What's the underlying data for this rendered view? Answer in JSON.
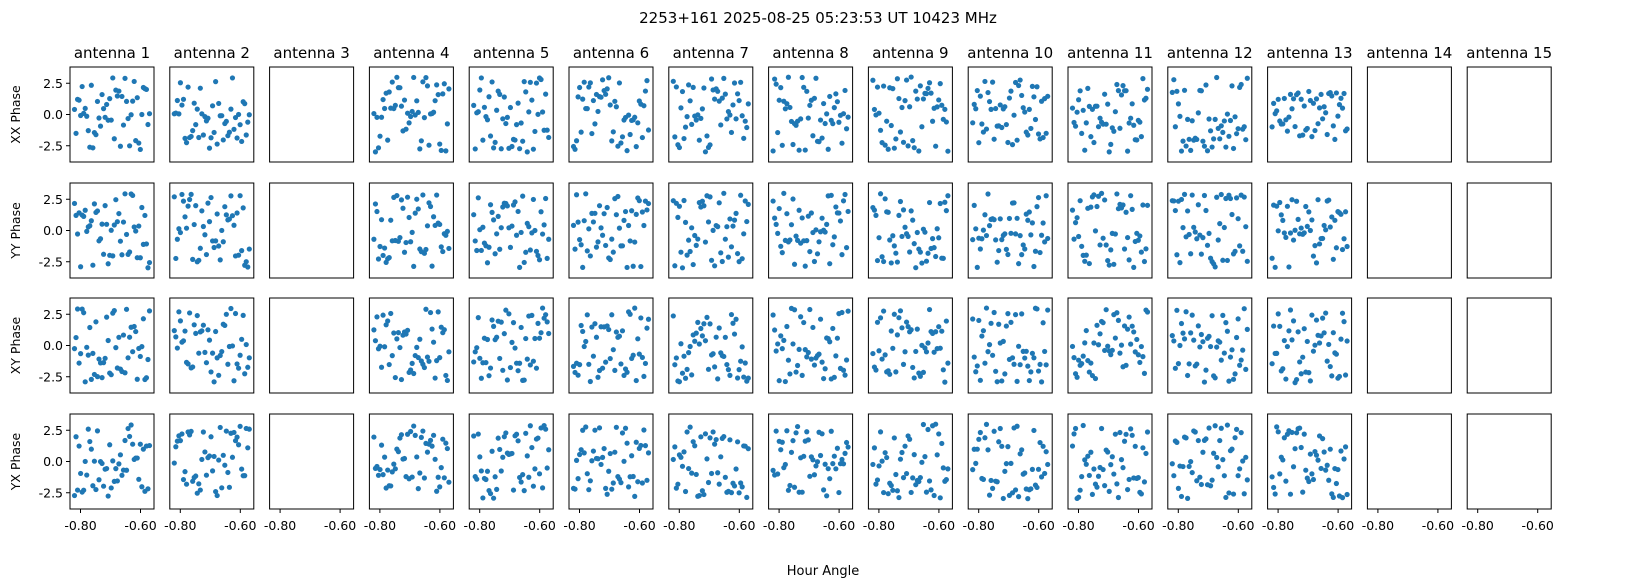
{
  "figure": {
    "suptitle": "2253+161  2025-08-25 05:23:53 UT  10423 MHz",
    "xlabel": "Hour Angle"
  },
  "style": {
    "point_color": "#1f77b4",
    "frame_color": "#000000",
    "background": "#ffffff"
  },
  "chart_data": {
    "type": "scatter",
    "layout": "grid",
    "antennas": [
      "antenna 1",
      "antenna 2",
      "antenna 3",
      "antenna 4",
      "antenna 5",
      "antenna 6",
      "antenna 7",
      "antenna 8",
      "antenna 9",
      "antenna 10",
      "antenna 11",
      "antenna 12",
      "antenna 13",
      "antenna 14",
      "antenna 15"
    ],
    "rows": [
      "XX Phase",
      "YY Phase",
      "XY Phase",
      "YX Phase"
    ],
    "xlim": [
      -0.835,
      -0.555
    ],
    "ylim": [
      -3.8,
      3.8
    ],
    "x_ticks": [
      -0.8,
      -0.6
    ],
    "x_tick_labels": [
      "-0.80",
      "-0.60"
    ],
    "y_ticks": [
      2.5,
      0.0,
      -2.5
    ],
    "y_tick_labels": [
      "2.5",
      "0.0",
      "-2.5"
    ],
    "x_range": [
      -0.82,
      -0.57
    ],
    "points_per_panel": 50,
    "antennas_without_data": [
      "antenna 3",
      "antenna 14",
      "antenna 15"
    ],
    "y_range_by_antenna": {
      "antenna 1": [
        [
          -3.0,
          3.0
        ],
        [
          -3.0,
          3.0
        ],
        [
          -3.0,
          3.0
        ],
        [
          -3.0,
          3.0
        ]
      ],
      "antenna 2": [
        [
          -3.0,
          3.0
        ],
        [
          -3.0,
          3.0
        ],
        [
          -3.0,
          3.0
        ],
        [
          -3.0,
          3.0
        ]
      ],
      "antenna 4": [
        [
          -3.0,
          3.0
        ],
        [
          -3.0,
          3.0
        ],
        [
          -3.0,
          3.0
        ],
        [
          -3.0,
          3.0
        ]
      ],
      "antenna 5": [
        [
          -3.0,
          3.0
        ],
        [
          -3.0,
          3.0
        ],
        [
          -3.0,
          3.0
        ],
        [
          -3.0,
          3.0
        ]
      ],
      "antenna 6": [
        [
          -3.0,
          3.0
        ],
        [
          -3.0,
          3.0
        ],
        [
          -3.0,
          3.0
        ],
        [
          -3.0,
          3.0
        ]
      ],
      "antenna 7": [
        [
          -3.0,
          3.0
        ],
        [
          -3.0,
          3.0
        ],
        [
          -3.0,
          3.0
        ],
        [
          -3.0,
          3.0
        ]
      ],
      "antenna 8": [
        [
          -3.0,
          3.0
        ],
        [
          -3.0,
          3.0
        ],
        [
          -3.0,
          3.0
        ],
        [
          -3.0,
          3.0
        ]
      ],
      "antenna 9": [
        [
          -3.0,
          3.0
        ],
        [
          -3.0,
          3.0
        ],
        [
          -3.0,
          3.0
        ],
        [
          -3.0,
          3.0
        ]
      ],
      "antenna 10": [
        [
          -3.0,
          3.0
        ],
        [
          -3.0,
          3.0
        ],
        [
          -3.0,
          3.0
        ],
        [
          -3.0,
          3.0
        ]
      ],
      "antenna 11": [
        [
          -3.0,
          3.0
        ],
        [
          -3.0,
          3.0
        ],
        [
          -3.0,
          3.0
        ],
        [
          -3.0,
          3.0
        ]
      ],
      "antenna 12": [
        [
          -3.0,
          3.0
        ],
        [
          -3.0,
          3.0
        ],
        [
          -3.0,
          3.0
        ],
        [
          -3.0,
          3.0
        ]
      ],
      "antenna 13": [
        [
          -2.0,
          2.0
        ],
        [
          -3.0,
          2.5
        ],
        [
          -3.0,
          3.0
        ],
        [
          -3.0,
          3.0
        ]
      ]
    },
    "grid": false,
    "legend": "none"
  }
}
